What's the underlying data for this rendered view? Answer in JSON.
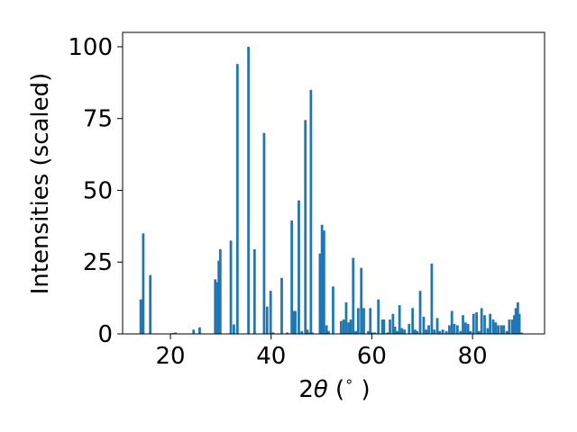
{
  "chart_data": {
    "type": "bar",
    "xlabel_parts": {
      "prefix": "2",
      "symbol": "θ",
      "suffix_open": " (",
      "degree": "∘",
      "suffix_close": " )"
    },
    "ylabel": "Intensities (scaled)",
    "xlim": [
      10.5,
      94.3
    ],
    "ylim": [
      0,
      105
    ],
    "xticks": [
      20,
      40,
      60,
      80
    ],
    "yticks": [
      0,
      25,
      50,
      75,
      100
    ],
    "grid": false,
    "bar_color": "#1f77b4",
    "bar_width": 0.5,
    "x": [
      14.1,
      14.6,
      16.0,
      20.5,
      21.0,
      24.6,
      25.8,
      28.9,
      29.2,
      29.6,
      29.9,
      32.0,
      32.6,
      33.3,
      35.5,
      36.7,
      38.6,
      39.2,
      39.9,
      40.4,
      42.1,
      43.2,
      44.1,
      44.4,
      44.8,
      45.5,
      46.1,
      46.8,
      47.2,
      47.4,
      47.9,
      48.2,
      49.7,
      50.1,
      50.5,
      51.0,
      51.4,
      52.3,
      53.9,
      54.4,
      54.9,
      55.4,
      55.8,
      56.3,
      56.8,
      57.3,
      57.9,
      58.4,
      59.3,
      59.7,
      60.1,
      60.6,
      61.3,
      62.1,
      62.4,
      63.1,
      63.6,
      64.2,
      64.6,
      65.1,
      65.5,
      66.0,
      66.5,
      67.4,
      68.1,
      68.6,
      69.0,
      69.6,
      70.3,
      70.8,
      71.3,
      71.9,
      72.4,
      73.0,
      73.5,
      74.1,
      74.8,
      75.4,
      75.9,
      76.4,
      77.0,
      77.6,
      78.1,
      78.6,
      79.1,
      79.6,
      80.2,
      80.8,
      81.3,
      81.8,
      82.4,
      83.0,
      83.5,
      84.1,
      84.6,
      85.1,
      85.7,
      86.2,
      86.8,
      87.3,
      87.9,
      88.3,
      88.6,
      89.0,
      89.3,
      89.7
    ],
    "values": [
      12,
      35,
      20.5,
      0.3,
      0.5,
      1.5,
      2.3,
      19,
      18,
      25.5,
      29.5,
      32.5,
      3.3,
      94,
      100,
      29.5,
      70,
      9.5,
      15,
      0.5,
      19.5,
      0.5,
      39.5,
      8,
      8,
      46.5,
      1,
      74.5,
      1.5,
      0.5,
      85,
      0.5,
      28,
      38,
      36,
      3,
      1,
      16.5,
      4.5,
      5,
      11,
      4,
      5,
      26.5,
      1,
      9,
      23,
      9,
      1,
      9,
      0.5,
      0.5,
      12,
      5,
      5,
      0.5,
      5,
      7,
      2.5,
      1,
      10,
      2,
      1.5,
      3.5,
      9,
      1.5,
      1,
      15,
      6,
      1.5,
      3,
      24.5,
      1.5,
      5.5,
      1,
      1.5,
      1,
      3,
      8,
      3.5,
      3,
      1,
      6.5,
      4,
      3.5,
      1,
      7,
      7.5,
      1,
      9,
      6.5,
      2,
      7,
      5,
      4,
      3,
      3,
      3,
      1,
      5,
      5,
      6.5,
      9,
      11,
      7,
      0.5
    ]
  }
}
